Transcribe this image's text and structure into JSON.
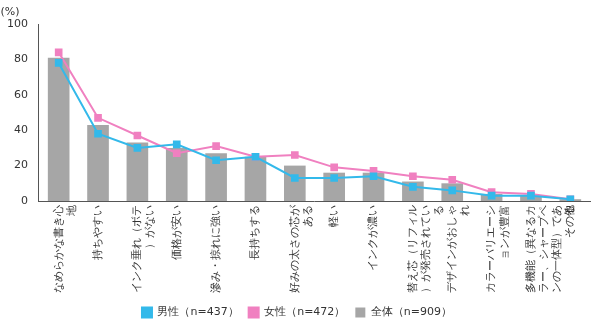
{
  "chart_data": {
    "type": "bar",
    "ylabel": "(%)",
    "categories": [
      "なめらかな書き心地",
      "持ちやすい",
      "インク垂れ（ボテ）がない",
      "価格が安い",
      "滲み・掠れに強い",
      "長持ちする",
      "好みの太さの芯がある",
      "軽い",
      "インクが濃い",
      "替え芯（リフィル）が発売されている",
      "デザインがおしゃれ",
      "カラーバリエーションが豊富",
      "多機能（異なるカラー、シャープペンの一体型）である",
      "その他"
    ],
    "series": [
      {
        "name": "全体（n=909）",
        "type": "bar",
        "color": "#a6a6a6",
        "values": [
          81,
          43,
          33,
          30,
          27,
          25,
          20,
          16,
          16,
          11,
          10,
          4,
          3,
          1
        ]
      },
      {
        "name": "男性（n=437）",
        "type": "line",
        "color": "#33b9ea",
        "marker": "square",
        "line_style": "solid",
        "values": [
          78,
          38,
          30,
          32,
          23,
          25,
          13,
          13,
          14,
          8,
          6,
          3,
          3,
          1
        ]
      },
      {
        "name": "女性（n=472）",
        "type": "line",
        "color": "#f080c0",
        "marker": "square",
        "line_style": "solid",
        "values": [
          84,
          47,
          37,
          27,
          31,
          25,
          26,
          19,
          17,
          14,
          12,
          5,
          4,
          1
        ]
      }
    ],
    "ylim": [
      0,
      100
    ],
    "yticks": [
      0,
      20,
      40,
      60,
      80,
      100
    ],
    "grid": false,
    "legend": "bottom"
  }
}
